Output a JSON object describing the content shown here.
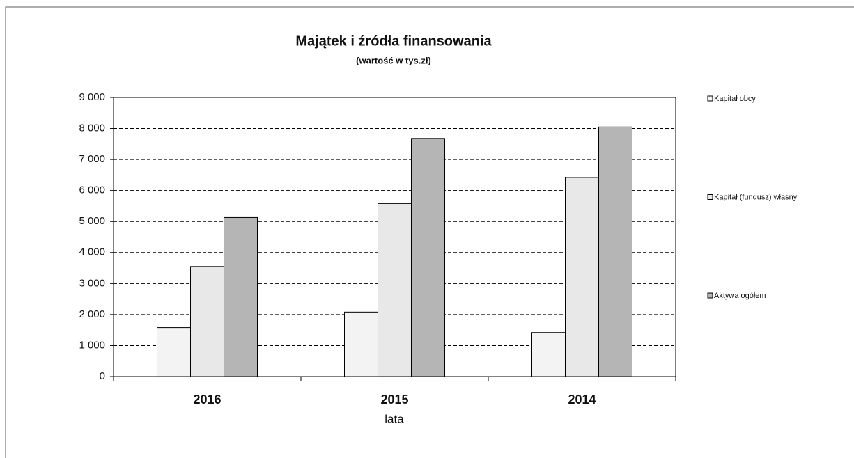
{
  "chart_data": {
    "type": "bar",
    "title": "Majątek i źródła finansowania",
    "subtitle": "(wartość w tys.zł)",
    "x_label": "lata",
    "categories": [
      "2016",
      "2015",
      "2014"
    ],
    "series": [
      {
        "name": "Kapitał obcy",
        "color": "#f3f3f3",
        "values": [
          1580,
          2080,
          1420
        ]
      },
      {
        "name": "Kapitał (fundusz) własny",
        "color": "#e8e8e8",
        "values": [
          3550,
          5580,
          6420
        ]
      },
      {
        "name": "Aktywa ogółem",
        "color": "#b5b5b5",
        "values": [
          5130,
          7680,
          8050
        ]
      }
    ],
    "ylim": [
      0,
      9000
    ],
    "yticks": [
      0,
      {
        "value": 1000,
        "label": "1 000"
      },
      {
        "value": 2000,
        "label": "2 000"
      },
      {
        "value": 3000,
        "label": "3 000"
      },
      {
        "value": 4000,
        "label": "4 000"
      },
      {
        "value": 5000,
        "label": "5 000"
      },
      {
        "value": 6000,
        "label": "6 000"
      },
      {
        "value": 7000,
        "label": "7 000"
      },
      {
        "value": 8000,
        "label": "8 000"
      },
      {
        "value": 9000,
        "label": "9 000"
      }
    ],
    "grid": true,
    "legend": "right"
  }
}
